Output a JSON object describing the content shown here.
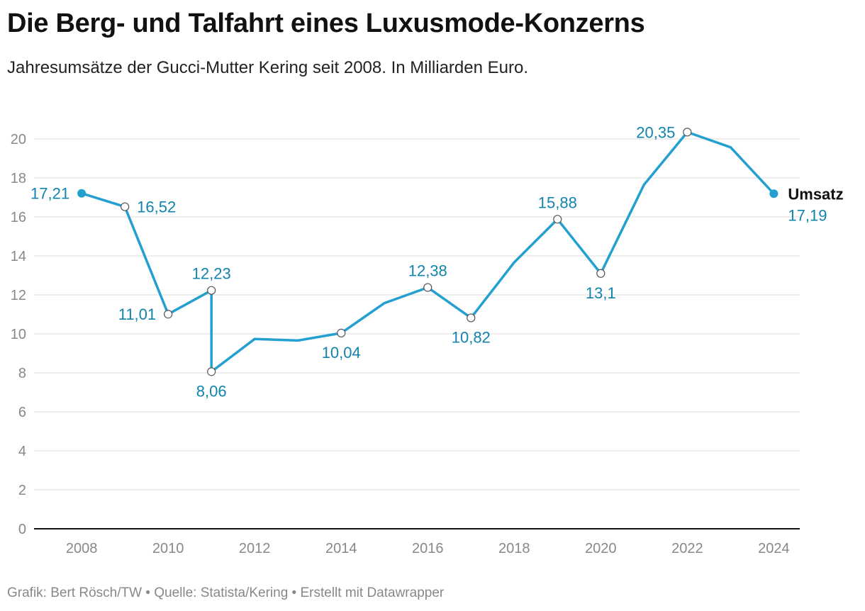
{
  "header": {
    "title": "Die Berg- und Talfahrt eines Luxusmode-Konzerns",
    "subtitle": "Jahresumsätze der Gucci-Mutter Kering seit 2008. In Milliarden Euro."
  },
  "footer": {
    "credit": "Grafik: Bert Rösch/TW • Quelle: Statista/Kering • Erstellt mit Datawrapper"
  },
  "colors": {
    "line": "#23a0cf",
    "label": "#1184ad",
    "grid": "#e3e3e3",
    "axis": "#111111",
    "tick": "#888888"
  },
  "chart_data": {
    "type": "line",
    "title": "Die Berg- und Talfahrt eines Luxusmode-Konzerns",
    "subtitle": "Jahresumsätze der Gucci-Mutter Kering seit 2008. In Milliarden Euro.",
    "xlabel": "",
    "ylabel": "",
    "xlim": [
      2006.9,
      2024.6
    ],
    "ylim": [
      0,
      20
    ],
    "x_ticks": [
      2008,
      2010,
      2012,
      2014,
      2016,
      2018,
      2020,
      2022,
      2024
    ],
    "y_ticks": [
      0,
      2,
      4,
      6,
      8,
      10,
      12,
      14,
      16,
      18,
      20
    ],
    "grid": true,
    "series": [
      {
        "name": "Umsatz",
        "end_value_label": "17,19",
        "points": [
          {
            "x": 2008,
            "y": 17.21,
            "label": "17,21",
            "label_pos": "left"
          },
          {
            "x": 2009,
            "y": 16.52,
            "label": "16,52",
            "label_pos": "right"
          },
          {
            "x": 2010,
            "y": 11.01,
            "label": "11,01",
            "label_pos": "left"
          },
          {
            "x": 2011,
            "y": 12.23,
            "label": "12,23",
            "label_pos": "above"
          },
          {
            "x": 2011,
            "y": 8.06,
            "label": "8,06",
            "label_pos": "below"
          },
          {
            "x": 2012,
            "y": 9.74,
            "label": ""
          },
          {
            "x": 2013,
            "y": 9.66,
            "label": ""
          },
          {
            "x": 2014,
            "y": 10.04,
            "label": "10,04",
            "label_pos": "below"
          },
          {
            "x": 2015,
            "y": 11.58,
            "label": ""
          },
          {
            "x": 2016,
            "y": 12.38,
            "label": "12,38",
            "label_pos": "above"
          },
          {
            "x": 2017,
            "y": 10.82,
            "label": "10,82",
            "label_pos": "below"
          },
          {
            "x": 2018,
            "y": 13.67,
            "label": ""
          },
          {
            "x": 2019,
            "y": 15.88,
            "label": "15,88",
            "label_pos": "above"
          },
          {
            "x": 2020,
            "y": 13.1,
            "label": "13,1",
            "label_pos": "below"
          },
          {
            "x": 2021,
            "y": 17.65,
            "label": ""
          },
          {
            "x": 2022,
            "y": 20.35,
            "label": "20,35",
            "label_pos": "left"
          },
          {
            "x": 2023,
            "y": 19.57,
            "label": ""
          },
          {
            "x": 2024,
            "y": 17.19,
            "label": ""
          }
        ]
      }
    ]
  }
}
